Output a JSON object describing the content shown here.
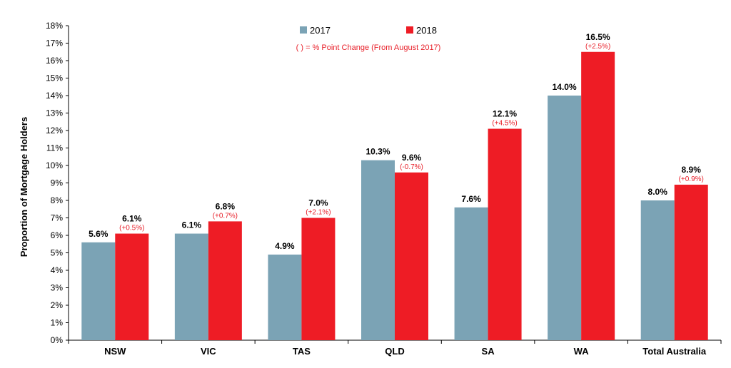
{
  "chart_data": {
    "type": "bar",
    "title": "",
    "xlabel": "",
    "ylabel": "Proportion of Mortgage Holders",
    "ylim": [
      0,
      18
    ],
    "y_tick_step": 1,
    "y_tick_suffix": "%",
    "grid": false,
    "legend_position": "top-center",
    "legend_note": "( ) = % Point Change (From August 2017)",
    "categories": [
      "NSW",
      "VIC",
      "TAS",
      "QLD",
      "SA",
      "WA",
      "Total Australia"
    ],
    "series": [
      {
        "name": "2017",
        "color": "#7ba3b5",
        "values": [
          5.6,
          6.1,
          4.9,
          10.3,
          7.6,
          14.0,
          8.0
        ],
        "labels": [
          "5.6%",
          "6.1%",
          "4.9%",
          "10.3%",
          "7.6%",
          "14.0%",
          "8.0%"
        ]
      },
      {
        "name": "2018",
        "color": "#ee1c25",
        "values": [
          6.1,
          6.8,
          7.0,
          9.6,
          12.1,
          16.5,
          8.9
        ],
        "labels": [
          "6.1%",
          "6.8%",
          "7.0%",
          "9.6%",
          "12.1%",
          "16.5%",
          "8.9%"
        ],
        "changes": [
          "(+0.5%)",
          "(+0.7%)",
          "(+2.1%)",
          "(-0.7%)",
          "(+4.5%)",
          "(+2.5%)",
          "(+0.9%)"
        ]
      }
    ]
  }
}
